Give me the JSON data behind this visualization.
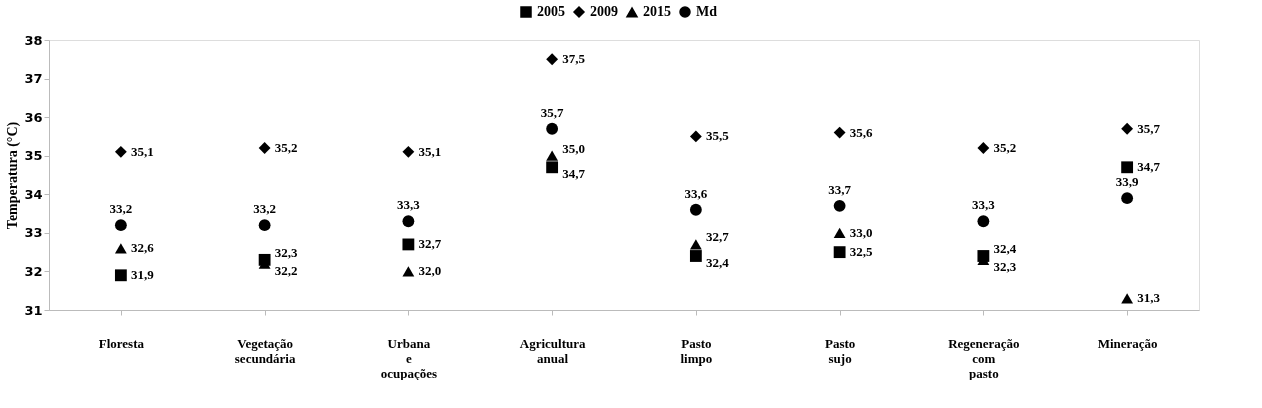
{
  "chart_data": {
    "type": "scatter",
    "ylabel": "Temperatura (°C)",
    "categories": [
      "Floresta",
      "Vegetação secundária",
      "Urbana e ocupações",
      "Agricultura anual",
      "Pasto limpo",
      "Pasto sujo",
      "Regeneração com pasto",
      "Mineração"
    ],
    "series": [
      {
        "name": "2005",
        "color": "#000000",
        "marker": "square",
        "values": [
          31.9,
          32.3,
          32.7,
          34.7,
          32.4,
          32.5,
          32.4,
          34.7
        ],
        "value_labels": [
          "31,9",
          "32,3",
          "32,7",
          "34,7",
          "32,4",
          "32,5",
          "32,4",
          "34,7"
        ]
      },
      {
        "name": "2009",
        "color": "#000000",
        "marker": "diamond",
        "values": [
          35.1,
          35.2,
          35.1,
          37.5,
          35.5,
          35.6,
          35.2,
          35.7
        ],
        "value_labels": [
          "35,1",
          "35,2",
          "35,1",
          "37,5",
          "35,5",
          "35,6",
          "35,2",
          "35,7"
        ]
      },
      {
        "name": "2015",
        "color": "#000000",
        "marker": "triangle",
        "values": [
          32.6,
          32.2,
          32.0,
          35.0,
          32.7,
          33.0,
          32.3,
          31.3
        ],
        "value_labels": [
          "32,6",
          "32,2",
          "32,0",
          "35,0",
          "32,7",
          "33,0",
          "32,3",
          "31,3"
        ]
      },
      {
        "name": "Md",
        "color": "#000000",
        "marker": "circle",
        "values": [
          33.2,
          33.2,
          33.3,
          35.7,
          33.6,
          33.7,
          33.3,
          33.9
        ],
        "value_labels": [
          "33,2",
          "33,2",
          "33,3",
          "35,7",
          "33,6",
          "33,7",
          "33,3",
          "33,9"
        ]
      }
    ],
    "ylim": [
      31,
      38
    ],
    "yticks": [
      31,
      32,
      33,
      34,
      35,
      36,
      37,
      38
    ],
    "legend": "top",
    "grid": false
  }
}
